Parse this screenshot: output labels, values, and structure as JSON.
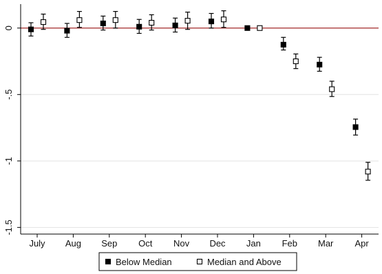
{
  "chart_data": {
    "type": "scatter",
    "subtype": "point-estimates-with-confidence-intervals",
    "categories": [
      "July",
      "Aug",
      "Sep",
      "Oct",
      "Nov",
      "Dec",
      "Jan",
      "Feb",
      "Mar",
      "Apr"
    ],
    "yticks": [
      "0",
      "-.5",
      "-1",
      "-1.5"
    ],
    "ytick_values": [
      0,
      -0.5,
      -1,
      -1.5
    ],
    "ylim": [
      -1.55,
      0.18
    ],
    "reference_line": {
      "y": 0,
      "color": "#a52a2a"
    },
    "grid": true,
    "legend_position": "bottom",
    "series": [
      {
        "name": "Below Median",
        "marker": "filled-square",
        "color": "#000000",
        "values": [
          -0.01,
          -0.02,
          0.035,
          0.01,
          0.02,
          0.05,
          0.0,
          -0.125,
          -0.275,
          -0.745
        ],
        "ci_low": [
          -0.06,
          -0.07,
          -0.015,
          -0.04,
          -0.03,
          0.0,
          0.0,
          -0.165,
          -0.325,
          -0.805
        ],
        "ci_high": [
          0.04,
          0.035,
          0.09,
          0.065,
          0.075,
          0.11,
          0.0,
          -0.07,
          -0.22,
          -0.685
        ]
      },
      {
        "name": "Median and Above",
        "marker": "hollow-square",
        "color": "#000000",
        "values": [
          0.045,
          0.06,
          0.06,
          0.04,
          0.055,
          0.065,
          0.0,
          -0.25,
          -0.46,
          -1.08
        ],
        "ci_low": [
          -0.01,
          0.005,
          0.0,
          -0.015,
          -0.01,
          0.005,
          0.0,
          -0.305,
          -0.515,
          -1.145
        ],
        "ci_high": [
          0.105,
          0.125,
          0.125,
          0.1,
          0.12,
          0.13,
          0.0,
          -0.195,
          -0.4,
          -1.01
        ]
      }
    ]
  }
}
